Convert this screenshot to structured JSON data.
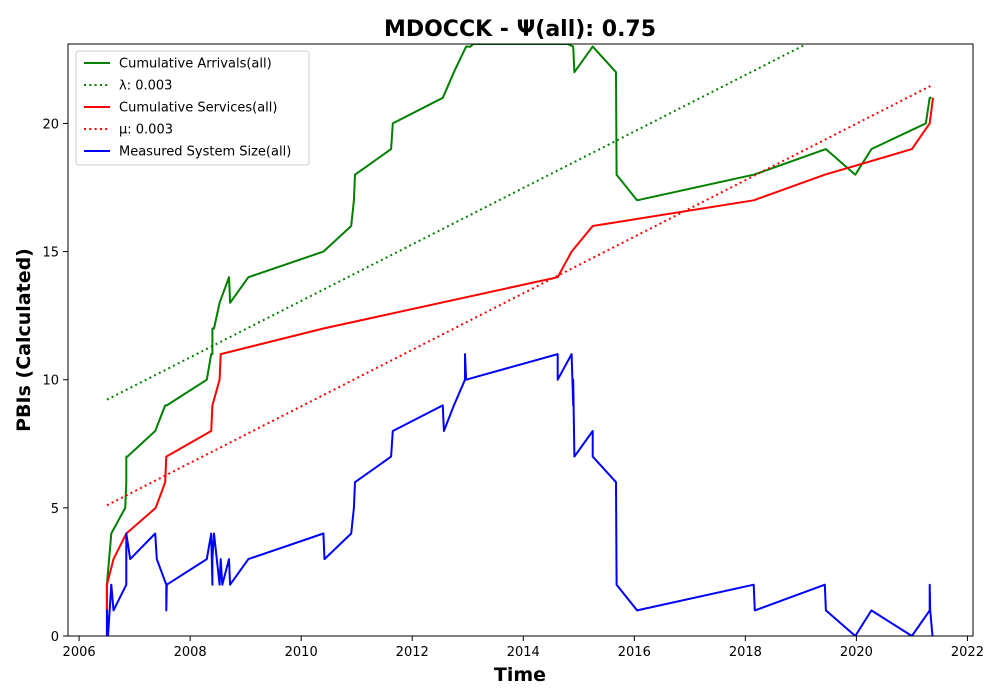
{
  "chart_data": {
    "type": "line",
    "title": "MDOCCK -  Ψ(all): 0.75",
    "xlabel": "Time",
    "ylabel": "PBIs (Calculated)",
    "xlim": [
      2005.8,
      2022.1
    ],
    "ylim": [
      0,
      23.1
    ],
    "x_ticks": [
      2006,
      2008,
      2010,
      2012,
      2014,
      2016,
      2018,
      2020,
      2022
    ],
    "y_ticks": [
      0,
      5,
      10,
      15,
      20
    ],
    "grid": false,
    "legend_position": "top-left",
    "series": [
      {
        "name": "Cumulative Arrivals(all)",
        "style": "solid",
        "color": "#008000",
        "x": [
          2006.5,
          2006.5,
          2006.58,
          2006.83,
          2006.85,
          2006.85,
          2006.87,
          2007.37,
          2007.55,
          2007.58,
          2008.3,
          2008.38,
          2008.4,
          2008.4,
          2008.43,
          2008.53,
          2008.7,
          2008.72,
          2009.05,
          2010.4,
          2010.9,
          2010.95,
          2010.97,
          2011.62,
          2011.65,
          2012.55,
          2012.75,
          2012.97,
          2013.05,
          2013.1,
          2014.8,
          2014.9,
          2014.92,
          2015.25,
          2015.67,
          2015.68,
          2016.05,
          2018.15,
          2019.45,
          2019.98,
          2020.27,
          2021.25,
          2021.32,
          2021.35
        ],
        "y": [
          1,
          2,
          4,
          5,
          6,
          7,
          7,
          8,
          9,
          9,
          10,
          11,
          11,
          12,
          12,
          13,
          14,
          13,
          14,
          15,
          16,
          17,
          18,
          19,
          20,
          21,
          22,
          23,
          23,
          23.1,
          23.1,
          23,
          22,
          23,
          22,
          18,
          17,
          18,
          19,
          18,
          19,
          20,
          21,
          21
        ]
      },
      {
        "name": "Cumulative Services(all)",
        "style": "solid",
        "color": "#ff0000",
        "x": [
          2006.5,
          2006.5,
          2006.62,
          2006.85,
          2007.38,
          2007.55,
          2007.57,
          2008.38,
          2008.4,
          2008.53,
          2008.55,
          2010.4,
          2014.62,
          2014.87,
          2015.25,
          2018.15,
          2019.43,
          2021.0,
          2021.32,
          2021.38
        ],
        "y": [
          1,
          2,
          3,
          4,
          5,
          6,
          7,
          8,
          9,
          10,
          11,
          12,
          14,
          15,
          16,
          17,
          18,
          19,
          20,
          21
        ]
      },
      {
        "name": "λ: 0.003",
        "style": "dotted",
        "color": "#008000",
        "x": [
          2006.5,
          2019.1
        ],
        "y": [
          9.22,
          23.1
        ]
      },
      {
        "name": "μ: 0.003",
        "style": "dotted",
        "color": "#ff0000",
        "x": [
          2006.5,
          2021.35
        ],
        "y": [
          5.1,
          21.48
        ]
      },
      {
        "name": "Measured System Size(all)",
        "style": "solid",
        "color": "#0000ff",
        "x": [
          2006.5,
          2006.5,
          2006.52,
          2006.58,
          2006.62,
          2006.85,
          2006.85,
          2006.92,
          2007.37,
          2007.4,
          2007.57,
          2007.57,
          2007.58,
          2008.3,
          2008.38,
          2008.4,
          2008.4,
          2008.43,
          2008.53,
          2008.55,
          2008.58,
          2008.7,
          2008.72,
          2009.05,
          2010.4,
          2010.42,
          2010.9,
          2010.95,
          2010.97,
          2011.62,
          2011.65,
          2012.55,
          2012.57,
          2012.75,
          2012.95,
          2012.95,
          2012.97,
          2012.97,
          2014.62,
          2014.62,
          2014.87,
          2014.9,
          2014.9,
          2014.92,
          2015.25,
          2015.25,
          2015.67,
          2015.68,
          2016.05,
          2018.15,
          2018.17,
          2019.43,
          2019.45,
          2019.98,
          2020.27,
          2021.0,
          2021.32,
          2021.32,
          2021.33,
          2021.37
        ],
        "y": [
          0,
          1,
          0,
          2,
          1,
          2,
          4,
          3,
          4,
          3,
          2,
          1,
          2,
          3,
          4,
          2,
          3,
          4,
          2,
          3,
          2,
          3,
          2,
          3,
          4,
          3,
          4,
          5,
          6,
          7,
          8,
          9,
          8,
          9,
          10,
          11,
          10,
          10,
          11,
          10,
          11,
          9,
          10,
          7,
          8,
          7,
          6,
          2,
          1,
          2,
          1,
          2,
          1,
          0,
          1,
          0,
          1,
          2,
          1,
          0
        ]
      }
    ]
  },
  "legend_order": [
    0,
    2,
    1,
    3,
    4
  ]
}
